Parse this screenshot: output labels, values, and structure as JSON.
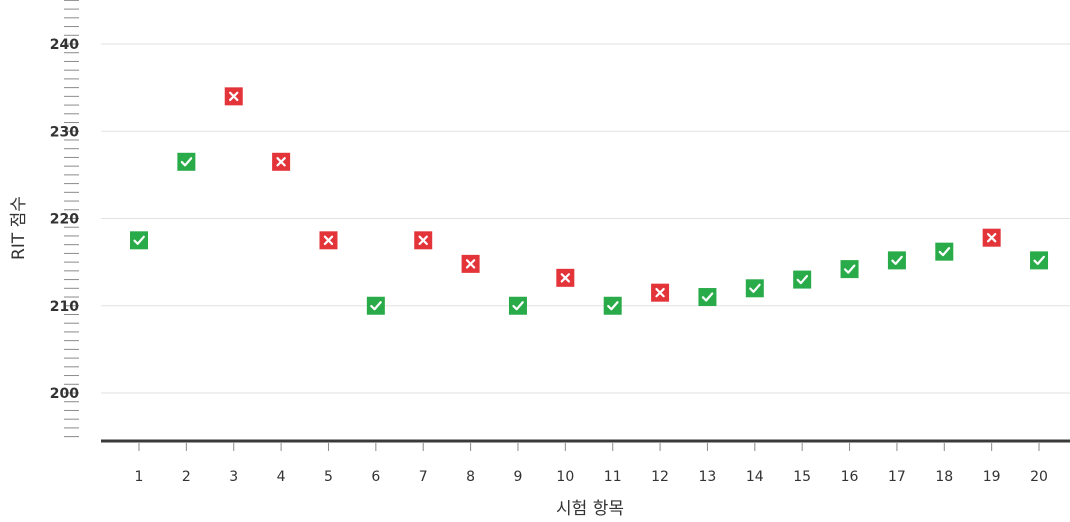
{
  "chart_data": {
    "type": "scatter",
    "xlabel": "시험 항목",
    "ylabel": "RIT 점수",
    "x": [
      1,
      2,
      3,
      4,
      5,
      6,
      7,
      8,
      9,
      10,
      11,
      12,
      13,
      14,
      15,
      16,
      17,
      18,
      19,
      20
    ],
    "y": [
      217.5,
      226.5,
      234,
      226.5,
      217.5,
      210,
      217.5,
      214.8,
      210,
      213.2,
      210,
      211.5,
      211,
      212,
      213,
      214.2,
      215.2,
      216.2,
      217.8,
      215.2
    ],
    "correct": [
      true,
      true,
      false,
      false,
      false,
      true,
      false,
      false,
      true,
      false,
      true,
      false,
      true,
      true,
      true,
      true,
      true,
      true,
      false,
      true
    ],
    "x_ticks": [
      "1",
      "2",
      "3",
      "4",
      "5",
      "6",
      "7",
      "8",
      "9",
      "10",
      "11",
      "12",
      "13",
      "14",
      "15",
      "16",
      "17",
      "18",
      "19",
      "20"
    ],
    "y_ticks": [
      200,
      210,
      220,
      230,
      240
    ],
    "ylim": [
      195,
      245
    ],
    "grid": true,
    "colors": {
      "correct": "#2aab4a",
      "incorrect": "#e3343a",
      "axis": "#3a3a3a",
      "grid": "#e2e2e2"
    },
    "marker_icons": {
      "correct": "check-icon",
      "incorrect": "x-icon"
    }
  }
}
